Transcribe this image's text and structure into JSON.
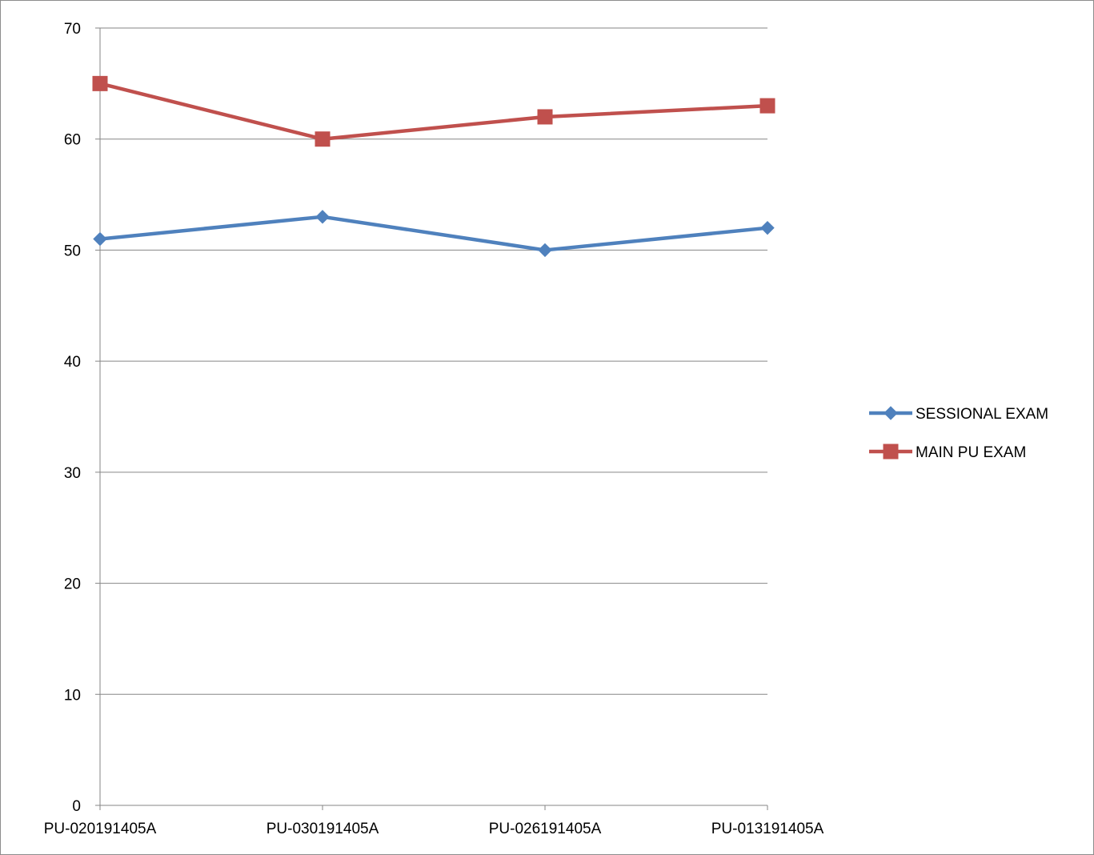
{
  "chart_data": {
    "type": "line",
    "title": "",
    "xlabel": "",
    "ylabel": "",
    "categories": [
      "PU-020191405A",
      "PU-030191405A",
      "PU-026191405A",
      "PU-013191405A"
    ],
    "ylim": [
      0,
      70
    ],
    "yticks": [
      "0",
      "10",
      "20",
      "30",
      "40",
      "50",
      "60",
      "70"
    ],
    "grid": "horizontal",
    "legend": "right",
    "series": [
      {
        "name": "SESSIONAL EXAM",
        "values": [
          51,
          53,
          50,
          52
        ],
        "color": "#4f81bd",
        "marker": "diamond"
      },
      {
        "name": "MAIN PU EXAM",
        "values": [
          65,
          60,
          62,
          63
        ],
        "color": "#c0504d",
        "marker": "square"
      }
    ]
  }
}
